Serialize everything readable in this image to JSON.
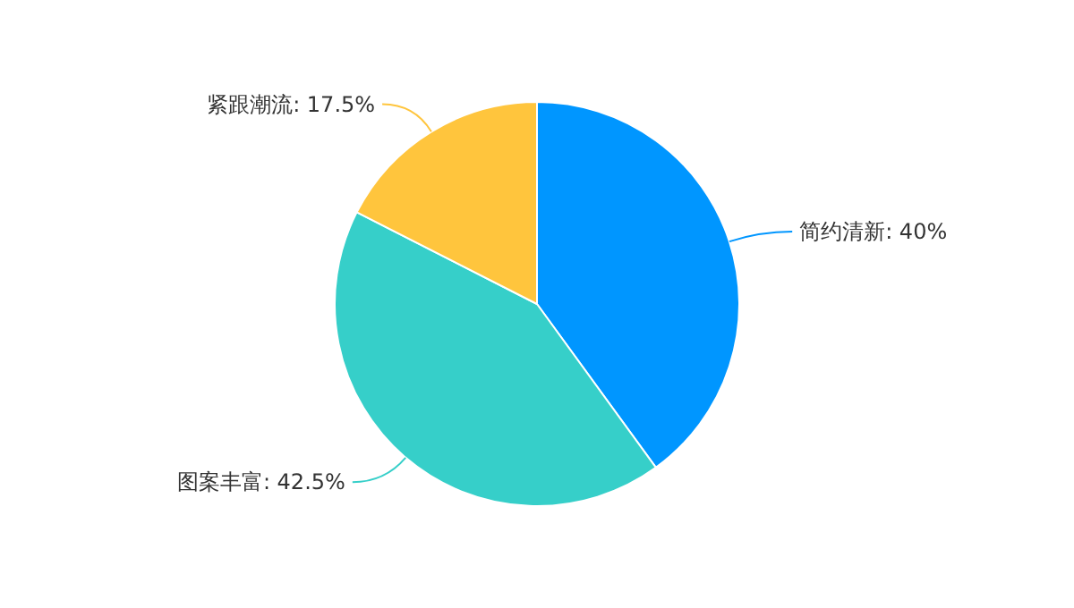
{
  "chart_data": {
    "type": "pie",
    "categories": [
      "简约清新",
      "图案丰富",
      "紧跟潮流"
    ],
    "values": [
      40,
      42.5,
      17.5
    ],
    "value_labels": [
      ": 40%",
      ": 42.5%",
      ": 17.5%"
    ],
    "colors": [
      "#0096ff",
      "#36cfc9",
      "#ffc53d"
    ]
  }
}
